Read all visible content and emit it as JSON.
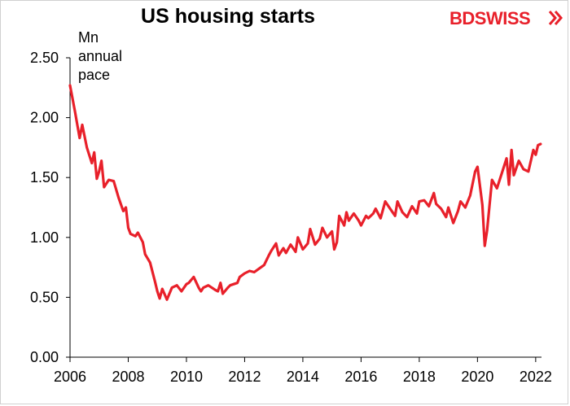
{
  "title": "US housing starts",
  "logo": {
    "part1": "BD",
    "part2": "SWISS",
    "arrow_icon": "double-chevron-icon",
    "color": "#e8202a"
  },
  "unit_label": [
    "Mn",
    "annual",
    "pace"
  ],
  "chart_data": {
    "type": "line",
    "title": "US housing starts",
    "ylabel": "Mn annual pace",
    "xlabel": "",
    "xlim": [
      2006,
      2022.2
    ],
    "ylim": [
      0,
      2.5
    ],
    "x_ticks": [
      "2006",
      "2008",
      "2010",
      "2012",
      "2014",
      "2016",
      "2018",
      "2020",
      "2022"
    ],
    "y_ticks": [
      "0.00",
      "0.50",
      "1.00",
      "1.50",
      "2.00",
      "2.50"
    ],
    "grid": false,
    "legend": "none",
    "series": [
      {
        "color": "#e8202a",
        "x": [
          2006.0,
          2006.17,
          2006.33,
          2006.42,
          2006.58,
          2006.75,
          2006.83,
          2006.92,
          2007.0,
          2007.08,
          2007.17,
          2007.33,
          2007.5,
          2007.67,
          2007.83,
          2007.92,
          2008.0,
          2008.08,
          2008.25,
          2008.33,
          2008.5,
          2008.58,
          2008.75,
          2008.92,
          2009.0,
          2009.08,
          2009.17,
          2009.33,
          2009.5,
          2009.67,
          2009.83,
          2010.0,
          2010.08,
          2010.25,
          2010.42,
          2010.5,
          2010.58,
          2010.75,
          2011.0,
          2011.08,
          2011.17,
          2011.25,
          2011.42,
          2011.5,
          2011.75,
          2011.83,
          2012.0,
          2012.17,
          2012.33,
          2012.5,
          2012.67,
          2012.83,
          2012.92,
          2013.08,
          2013.17,
          2013.33,
          2013.42,
          2013.58,
          2013.75,
          2013.83,
          2014.0,
          2014.17,
          2014.25,
          2014.42,
          2014.58,
          2014.67,
          2014.83,
          2015.0,
          2015.08,
          2015.17,
          2015.25,
          2015.42,
          2015.5,
          2015.58,
          2015.75,
          2015.92,
          2016.0,
          2016.17,
          2016.25,
          2016.42,
          2016.5,
          2016.67,
          2016.83,
          2017.0,
          2017.17,
          2017.25,
          2017.42,
          2017.58,
          2017.75,
          2017.92,
          2018.0,
          2018.17,
          2018.33,
          2018.5,
          2018.58,
          2018.75,
          2018.92,
          2019.0,
          2019.17,
          2019.33,
          2019.42,
          2019.58,
          2019.75,
          2019.92,
          2020.0,
          2020.17,
          2020.25,
          2020.33,
          2020.5,
          2020.67,
          2020.83,
          2021.0,
          2021.08,
          2021.17,
          2021.25,
          2021.42,
          2021.58,
          2021.75,
          2021.92,
          2022.0,
          2022.08,
          2022.17
        ],
        "y": [
          2.27,
          2.05,
          1.83,
          1.94,
          1.75,
          1.62,
          1.71,
          1.49,
          1.55,
          1.64,
          1.42,
          1.48,
          1.47,
          1.33,
          1.22,
          1.25,
          1.08,
          1.03,
          1.01,
          1.04,
          0.96,
          0.86,
          0.79,
          0.63,
          0.55,
          0.49,
          0.57,
          0.48,
          0.58,
          0.6,
          0.55,
          0.61,
          0.62,
          0.67,
          0.58,
          0.55,
          0.58,
          0.6,
          0.56,
          0.55,
          0.62,
          0.53,
          0.58,
          0.6,
          0.62,
          0.67,
          0.7,
          0.72,
          0.71,
          0.74,
          0.77,
          0.85,
          0.89,
          0.95,
          0.85,
          0.91,
          0.87,
          0.94,
          0.88,
          1.0,
          0.9,
          0.95,
          1.07,
          0.94,
          0.99,
          1.08,
          1.0,
          1.05,
          0.9,
          0.96,
          1.18,
          1.1,
          1.21,
          1.14,
          1.2,
          1.14,
          1.1,
          1.18,
          1.16,
          1.2,
          1.24,
          1.16,
          1.3,
          1.24,
          1.18,
          1.3,
          1.21,
          1.17,
          1.26,
          1.2,
          1.3,
          1.31,
          1.26,
          1.37,
          1.28,
          1.24,
          1.17,
          1.25,
          1.12,
          1.22,
          1.3,
          1.25,
          1.35,
          1.55,
          1.59,
          1.27,
          0.93,
          1.06,
          1.48,
          1.41,
          1.53,
          1.66,
          1.44,
          1.73,
          1.52,
          1.64,
          1.57,
          1.55,
          1.73,
          1.69,
          1.77,
          1.78
        ]
      }
    ]
  }
}
